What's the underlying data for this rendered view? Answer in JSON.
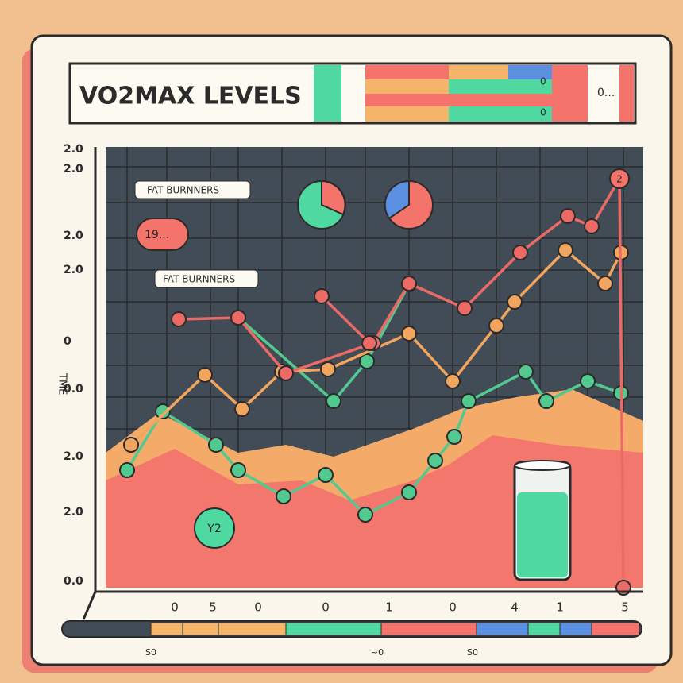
{
  "header": {
    "title": "VO2MAX LEVELS",
    "chips": [
      "0",
      "0",
      "0..."
    ]
  },
  "axis": {
    "label": "TME",
    "left_labels": [
      "2.0",
      "2.0",
      "2.0",
      "2.0",
      "0",
      "0.0",
      "2.0",
      "2.0",
      "0.0"
    ],
    "bottom_labels": [
      "0",
      "5",
      "0",
      "0",
      "1",
      "0",
      "4",
      "1",
      "5"
    ]
  },
  "annotations": {
    "tag_1": "FAT BURNNERS",
    "tag_2": "FAT BURNNERS",
    "bubble": "19...",
    "badge": "2",
    "circle": "Y2"
  },
  "footer": {
    "labels": [
      "S0",
      "~0",
      "S0"
    ]
  }
}
